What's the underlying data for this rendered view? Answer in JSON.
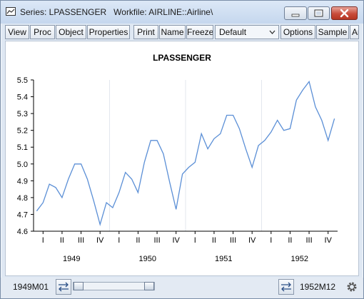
{
  "window": {
    "title": "Series: LPASSENGER   Workfile: AIRLINE::Airline\\",
    "controls": {
      "minimize": "minimize-icon",
      "maximize": "maximize-icon",
      "close": "close-icon"
    }
  },
  "toolbar": {
    "buttons": [
      "View",
      "Proc",
      "Object",
      "Properties",
      "Print",
      "Name",
      "Freeze",
      "Options",
      "Sample",
      "Ar"
    ],
    "dropdown_value": "Default"
  },
  "status": {
    "start": "1949M01",
    "end": "1952M12"
  },
  "colors": {
    "line": "#5b8fd6",
    "grid": "#e3e7ee",
    "axis": "#000000"
  },
  "chart_data": {
    "type": "line",
    "title": "LPASSENGER",
    "xlabel": "",
    "ylabel": "",
    "ylim": [
      4.6,
      5.5
    ],
    "yticks": [
      4.6,
      4.7,
      4.8,
      4.9,
      5.0,
      5.1,
      5.2,
      5.3,
      5.4,
      5.5
    ],
    "ytick_labels": [
      "4.6",
      "4.7",
      "4.8",
      "4.9",
      "5.0",
      "5.1",
      "5.2",
      "5.3",
      "5.4",
      "5.5"
    ],
    "quarter_labels": [
      "I",
      "II",
      "III",
      "IV",
      "I",
      "II",
      "III",
      "IV",
      "I",
      "II",
      "III",
      "IV",
      "I",
      "II",
      "III",
      "IV"
    ],
    "year_labels": [
      "1949",
      "1950",
      "1951",
      "1952"
    ],
    "grid": "vertical year dividers",
    "series": [
      {
        "x": [
          "1949M01",
          "1949M02",
          "1949M03",
          "1949M04",
          "1949M05",
          "1949M06",
          "1949M07",
          "1949M08",
          "1949M09",
          "1949M10",
          "1949M11",
          "1949M12",
          "1950M01",
          "1950M02",
          "1950M03",
          "1950M04",
          "1950M05",
          "1950M06",
          "1950M07",
          "1950M08",
          "1950M09",
          "1950M10",
          "1950M11",
          "1950M12",
          "1951M01",
          "1951M02",
          "1951M03",
          "1951M04",
          "1951M05",
          "1951M06",
          "1951M07",
          "1951M08",
          "1951M09",
          "1951M10",
          "1951M11",
          "1951M12",
          "1952M01",
          "1952M02",
          "1952M03",
          "1952M04",
          "1952M05",
          "1952M06",
          "1952M07",
          "1952M08",
          "1952M09",
          "1952M10",
          "1952M11",
          "1952M12"
        ],
        "values": [
          4.72,
          4.77,
          4.88,
          4.86,
          4.8,
          4.91,
          5.0,
          5.0,
          4.91,
          4.78,
          4.64,
          4.77,
          4.74,
          4.83,
          4.95,
          4.91,
          4.83,
          5.01,
          5.14,
          5.14,
          5.06,
          4.89,
          4.73,
          4.94,
          4.98,
          5.01,
          5.18,
          5.09,
          5.15,
          5.18,
          5.29,
          5.29,
          5.21,
          5.09,
          4.98,
          5.11,
          5.14,
          5.19,
          5.26,
          5.2,
          5.21,
          5.38,
          5.44,
          5.49,
          5.34,
          5.26,
          5.14,
          5.27
        ]
      }
    ]
  }
}
